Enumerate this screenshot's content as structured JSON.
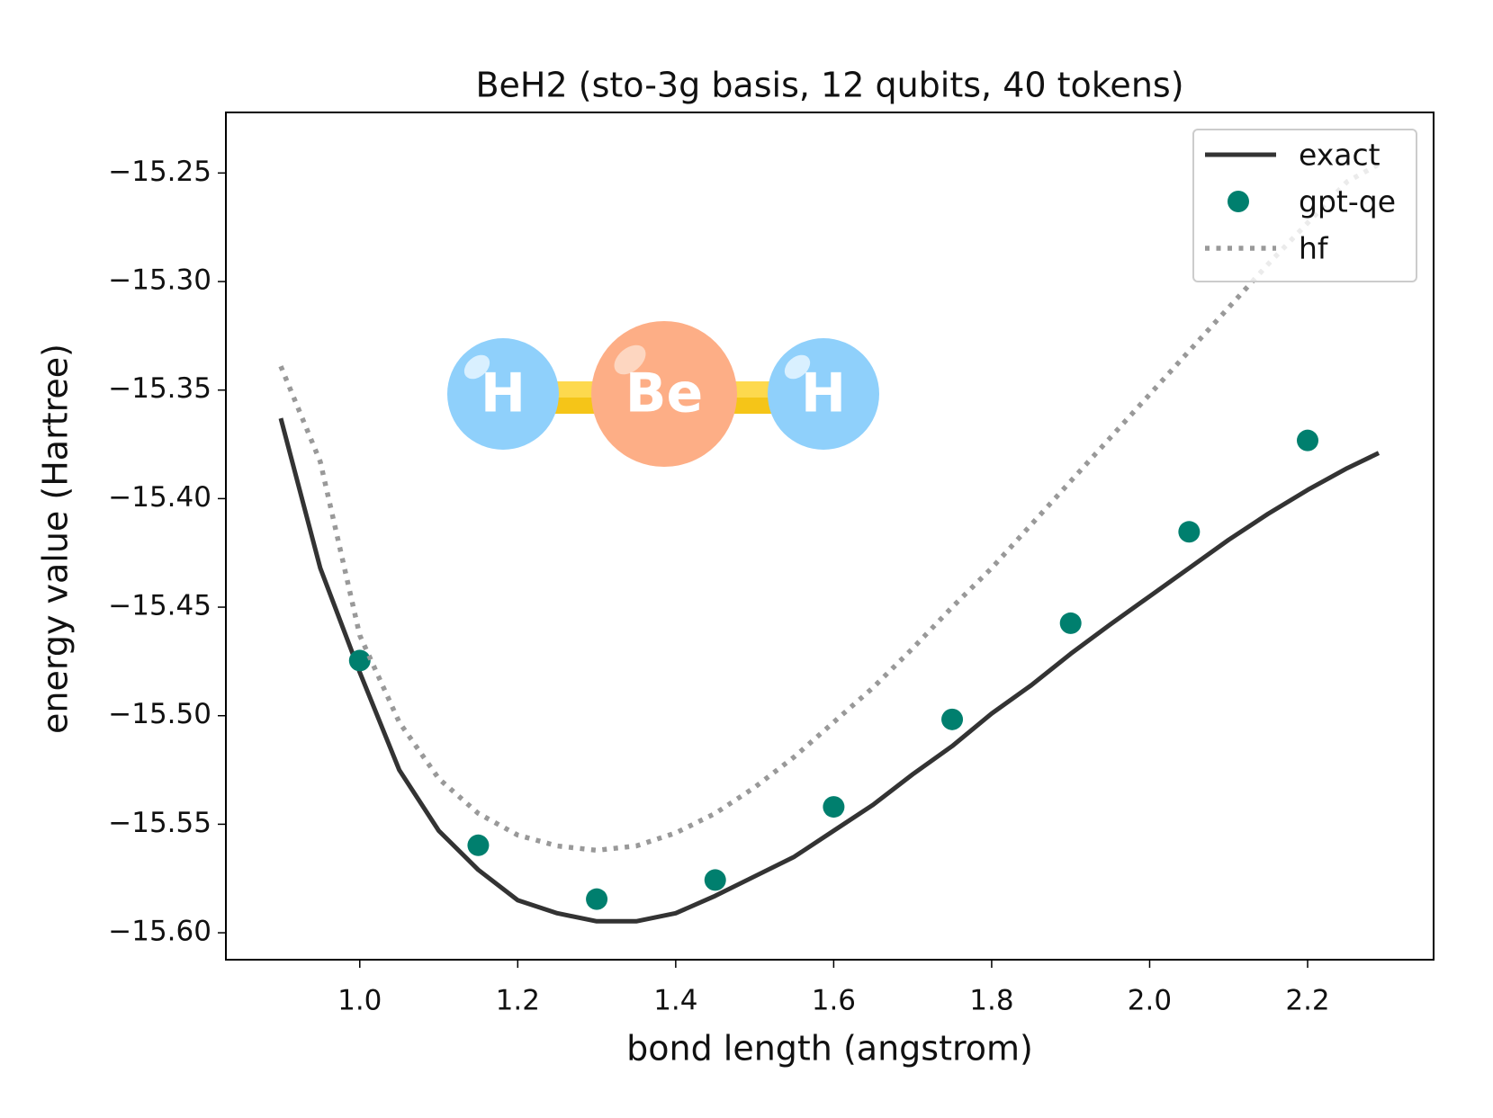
{
  "chart_data": {
    "type": "line",
    "title": "BeH2 (sto-3g basis, 12 qubits, 40 tokens)",
    "xlabel": "bond length (angstrom)",
    "ylabel": "energy value (Hartree)",
    "molecule_labels": [
      "H",
      "Be",
      "H"
    ],
    "xlim": [
      0.8305,
      2.3595
    ],
    "ylim": [
      -15.6124,
      -15.2221
    ],
    "xticks": [
      {
        "value": 1,
        "label": "1.0"
      },
      1.2,
      1.4,
      1.6,
      1.8,
      {
        "value": 2,
        "label": "2.0"
      },
      2.2
    ],
    "yticks": [
      {
        "value": -15.6,
        "label": "−15.60"
      },
      {
        "value": -15.55,
        "label": "−15.55"
      },
      {
        "value": -15.5,
        "label": "−15.50"
      },
      {
        "value": -15.45,
        "label": "−15.45"
      },
      {
        "value": -15.4,
        "label": "−15.40"
      },
      {
        "value": -15.35,
        "label": "−15.35"
      },
      {
        "value": -15.3,
        "label": "−15.30"
      },
      {
        "value": -15.25,
        "label": "−15.25"
      }
    ],
    "legend": "upper right",
    "series": [
      {
        "name": "exact",
        "color": "#333333",
        "style": "solid",
        "x": [
          0.9,
          0.95,
          1.0,
          1.05,
          1.1,
          1.15,
          1.2,
          1.25,
          1.3,
          1.35,
          1.4,
          1.45,
          1.5,
          1.55,
          1.6,
          1.65,
          1.7,
          1.75,
          1.8,
          1.85,
          1.9,
          1.95,
          2.0,
          2.05,
          2.1,
          2.15,
          2.2,
          2.25,
          2.29
        ],
        "values": [
          -15.363,
          -15.432,
          -15.48,
          -15.525,
          -15.553,
          -15.571,
          -15.585,
          -15.591,
          -15.5947,
          -15.5947,
          -15.591,
          -15.583,
          -15.574,
          -15.565,
          -15.553,
          -15.541,
          -15.527,
          -15.514,
          -15.499,
          -15.486,
          -15.4715,
          -15.458,
          -15.445,
          -15.432,
          -15.419,
          -15.407,
          -15.396,
          -15.386,
          -15.379
        ]
      },
      {
        "name": "gpt-qe",
        "color": "#007f6e",
        "style": "marker",
        "x": [
          1.0,
          1.15,
          1.3,
          1.45,
          1.6,
          1.75,
          1.9,
          2.05,
          2.2
        ],
        "values": [
          -15.4746,
          -15.5597,
          -15.5845,
          -15.5757,
          -15.542,
          -15.5017,
          -15.4574,
          -15.4153,
          -15.3732
        ]
      },
      {
        "name": "hf",
        "color": "#999999",
        "style": "dotted",
        "x": [
          0.9,
          0.95,
          1.0,
          1.05,
          1.1,
          1.15,
          1.2,
          1.25,
          1.3,
          1.35,
          1.4,
          1.45,
          1.5,
          1.55,
          1.6,
          1.65,
          1.7,
          1.75,
          1.8,
          1.85,
          1.9,
          1.95,
          2.0,
          2.05,
          2.1,
          2.15,
          2.2,
          2.25,
          2.29
        ],
        "values": [
          -15.339,
          -15.383,
          -15.463,
          -15.503,
          -15.529,
          -15.545,
          -15.555,
          -15.56,
          -15.562,
          -15.56,
          -15.554,
          -15.545,
          -15.533,
          -15.519,
          -15.503,
          -15.487,
          -15.469,
          -15.45,
          -15.432,
          -15.412,
          -15.392,
          -15.372,
          -15.352,
          -15.332,
          -15.312,
          -15.292,
          -15.273,
          -15.254,
          -15.246
        ]
      }
    ]
  }
}
